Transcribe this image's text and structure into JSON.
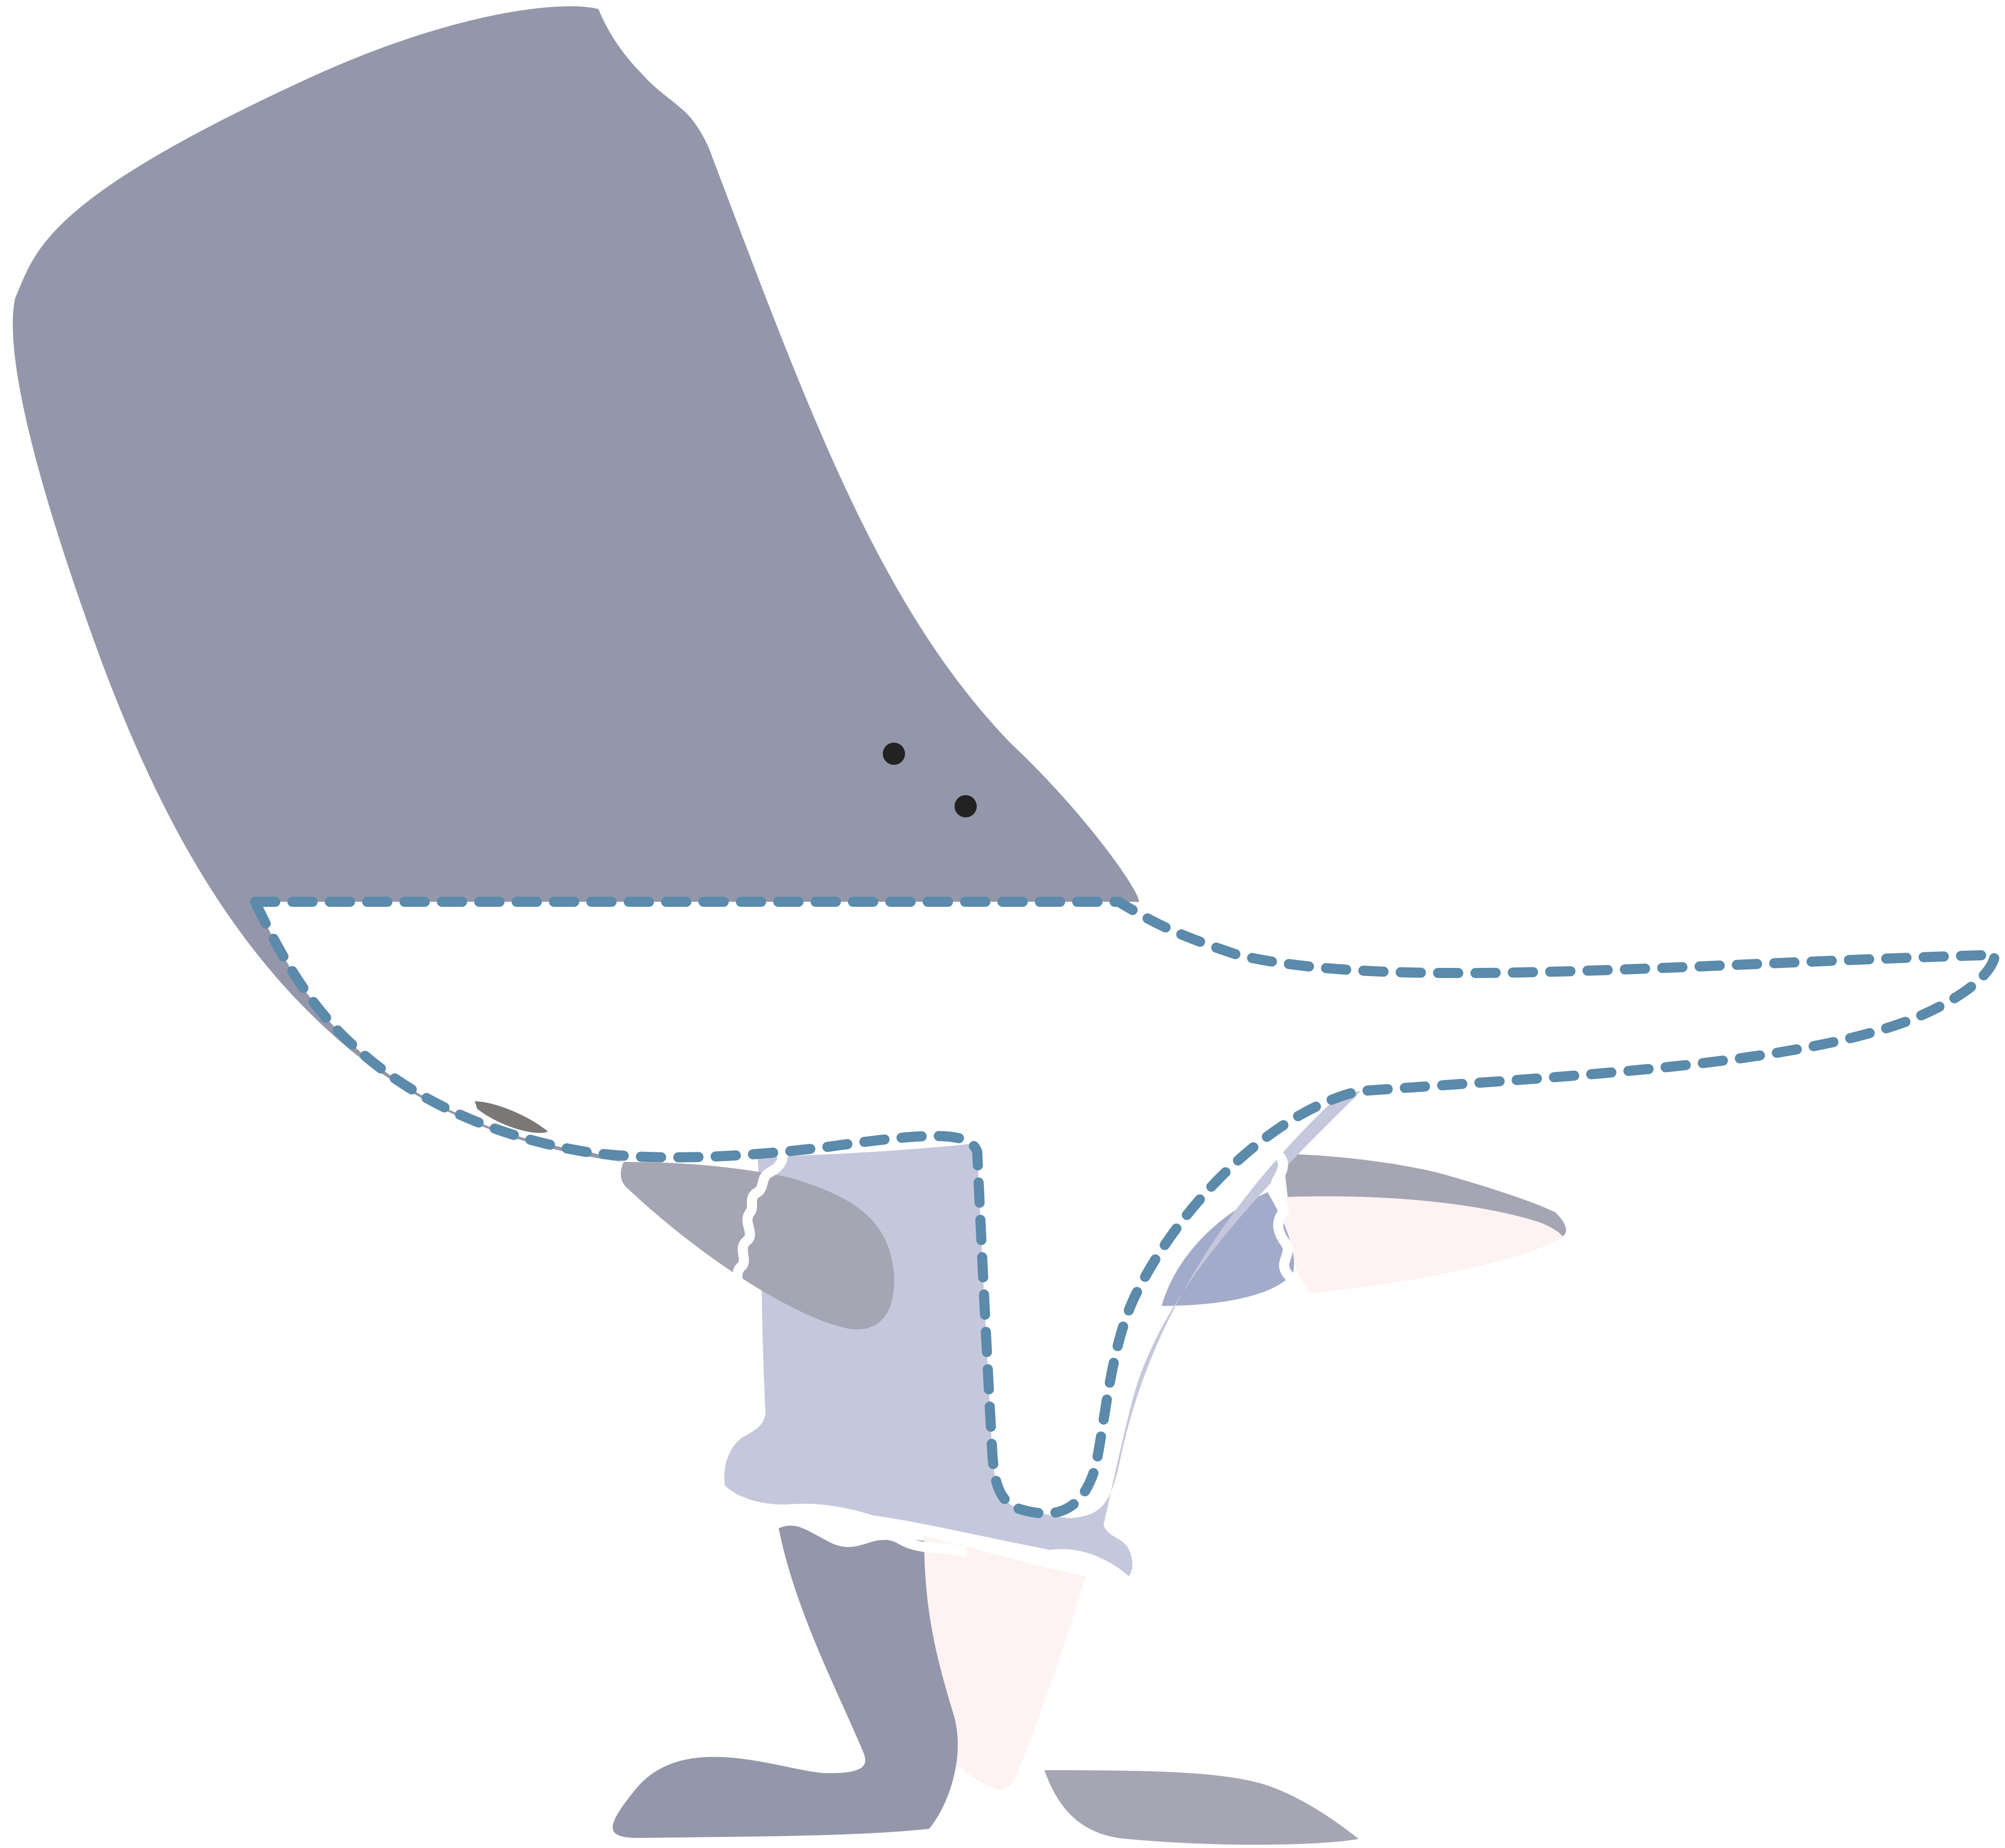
{
  "colors": {
    "background": "#ffffff",
    "whale_head": "#9497aa",
    "whale_dark_grey": "#a6a5b3",
    "body_lavender": "#c5c7dc",
    "fin_blue": "#a3abca",
    "pink_lining": "#fff2f3",
    "dashed_outline": "#5b8aaa",
    "eye_dot": "#222222",
    "mouth_slit": "#7b7777",
    "ruffle_edge": "#ffffff"
  },
  "icons": {
    "figure": "whale-costume-figure-icon",
    "eyes": "eye-dot-icon",
    "dashed_path": "dashed-outline-icon"
  }
}
